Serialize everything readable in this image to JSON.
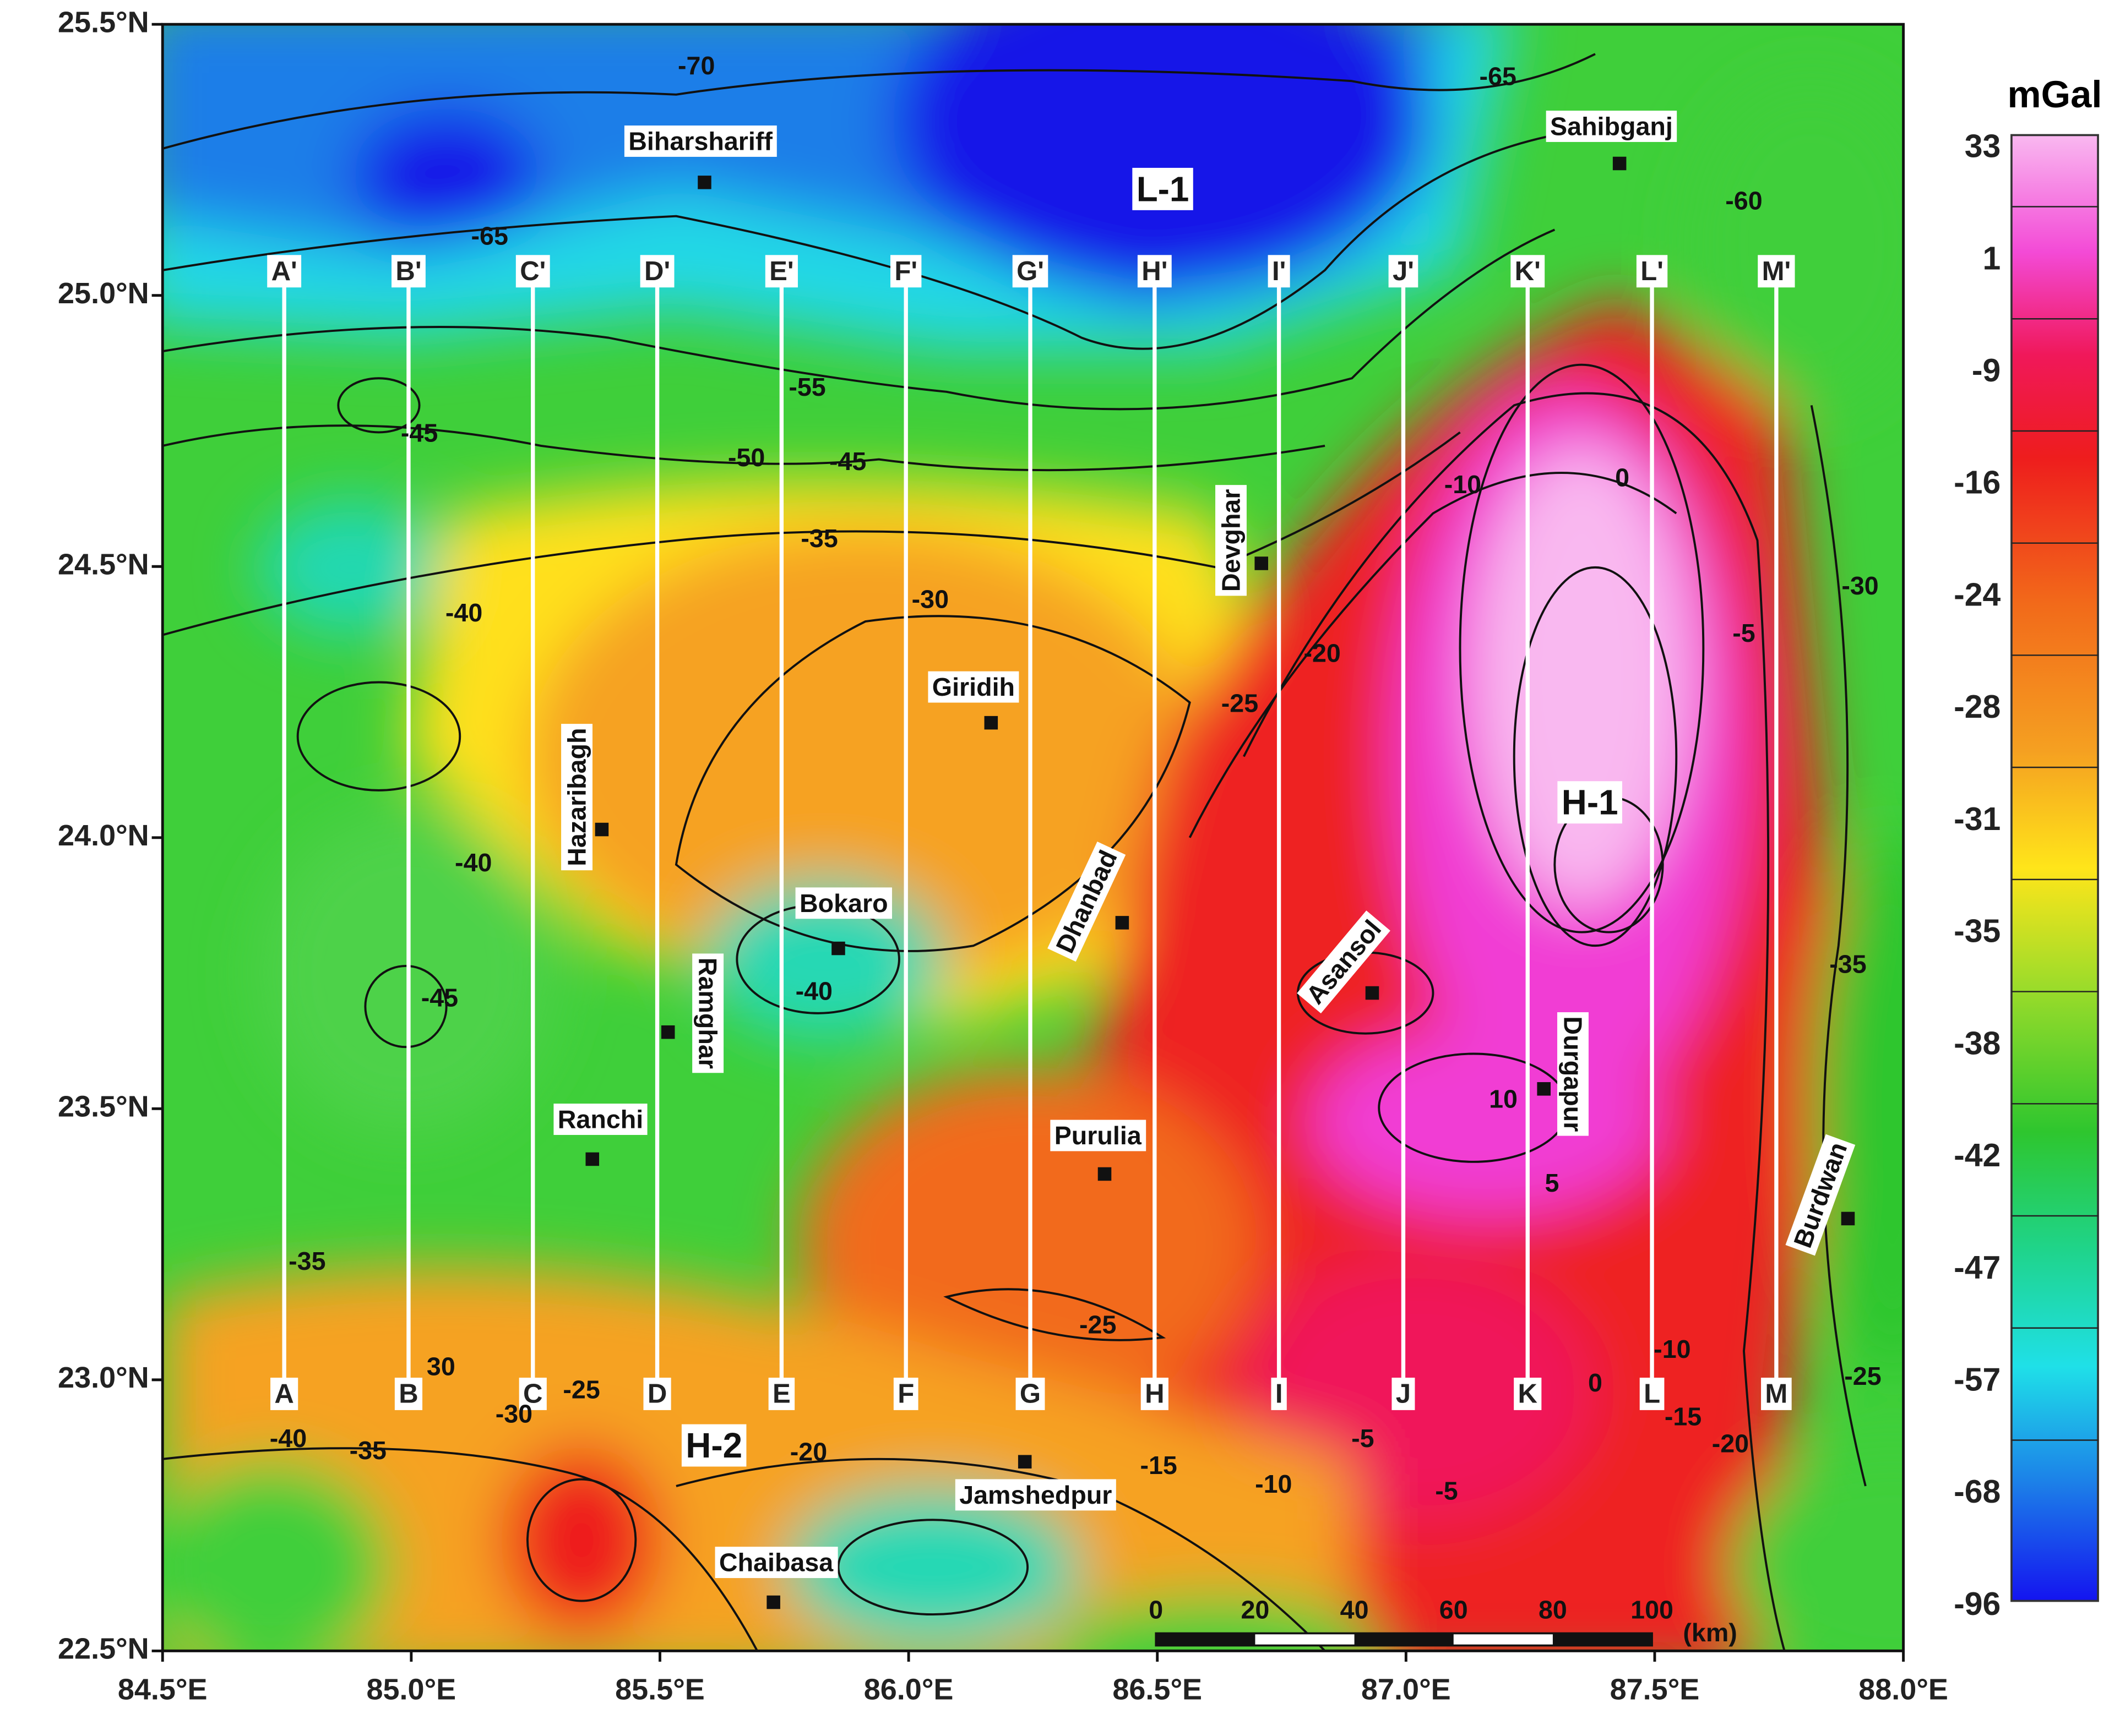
{
  "axes": {
    "lat_labels": [
      "25.5°N",
      "25.0°N",
      "24.5°N",
      "24.0°N",
      "23.5°N",
      "23.0°N",
      "22.5°N"
    ],
    "lon_labels": [
      "84.5°E",
      "85.0°E",
      "85.5°E",
      "86.0°E",
      "86.5°E",
      "87.0°E",
      "87.5°E",
      "88.0°E"
    ]
  },
  "colorbar": {
    "unit": "mGal",
    "labels": [
      33,
      1,
      -9,
      -16,
      -24,
      -28,
      -31,
      -35,
      -38,
      -42,
      -47,
      -57,
      -68,
      -96
    ]
  },
  "profiles": {
    "start": [
      "A",
      "B",
      "C",
      "D",
      "E",
      "F",
      "G",
      "H",
      "I",
      "J",
      "K",
      "L",
      "M"
    ],
    "end": [
      "A'",
      "B'",
      "C'",
      "D'",
      "E'",
      "F'",
      "G'",
      "H'",
      "I'",
      "J'",
      "K'",
      "L'",
      "M'"
    ]
  },
  "places": [
    "Biharshariff",
    "Sahibganj",
    "Devghar",
    "Giridih",
    "Hazaribagh",
    "Bokaro",
    "Ramghar",
    "Dhanbad",
    "Ranchi",
    "Purulia",
    "Asansol",
    "Durgapur",
    "Burdwan",
    "Jamshedpur",
    "Chaibasa"
  ],
  "anomalies": [
    "L-1",
    "H-1",
    "H-2"
  ],
  "contour_labels": [
    -70,
    -65,
    -65,
    -60,
    -55,
    -50,
    -45,
    -45,
    -40,
    -35,
    -30,
    -40,
    -45,
    -40,
    -35,
    30,
    -25,
    -25,
    -20,
    -10,
    0,
    -5,
    -30,
    -35,
    10,
    5,
    -40,
    -35,
    -30,
    -25,
    -20,
    -15,
    -10,
    -5,
    -5,
    -10,
    -15,
    -20,
    -25,
    0
  ],
  "scale_bar": {
    "labels": [
      0,
      20,
      40,
      60,
      80,
      100
    ],
    "unit": "(km)"
  }
}
